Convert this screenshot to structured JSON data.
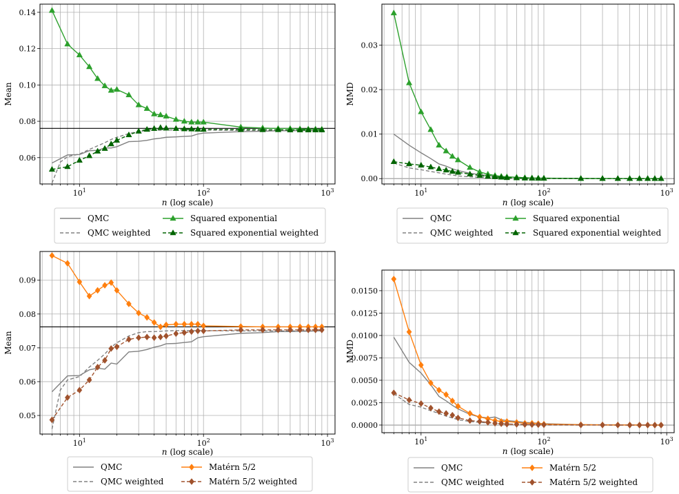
{
  "chart_data": [
    {
      "type": "line",
      "ylabel": "Mean",
      "xlabel": "n (log scale)",
      "xscale": "log",
      "xlim": [
        4.8,
        1150
      ],
      "ylim": [
        0.0455,
        0.1445
      ],
      "yticks": [
        0.06,
        0.08,
        0.1,
        0.12,
        0.14
      ],
      "ytick_labels": [
        "0.06",
        "0.08",
        "0.10",
        "0.12",
        "0.14"
      ],
      "hline": 0.0761,
      "grid": true,
      "legend_placement": "below",
      "series": [
        {
          "name": "QMC",
          "color": "#808080",
          "dash": "solid",
          "marker": "none",
          "x": [
            6,
            8,
            10,
            12,
            14,
            16,
            18,
            20,
            25,
            30,
            35,
            40,
            45,
            50,
            60,
            70,
            80,
            90,
            100,
            200,
            300,
            400,
            500,
            600,
            700,
            800,
            900
          ],
          "y": [
            0.057,
            0.0615,
            0.0617,
            0.0638,
            0.064,
            0.0654,
            0.0653,
            0.066,
            0.0688,
            0.069,
            0.0695,
            0.0703,
            0.0707,
            0.0712,
            0.0714,
            0.0717,
            0.0719,
            0.073,
            0.0735,
            0.0743,
            0.0745,
            0.0748,
            0.0748,
            0.0749,
            0.0749,
            0.075,
            0.075
          ]
        },
        {
          "name": "QMC weighted",
          "color": "#808080",
          "dash": "dashed",
          "marker": "none",
          "x": [
            6,
            7,
            8,
            10,
            12,
            14,
            16,
            18,
            20,
            25,
            30,
            35,
            40,
            50,
            60,
            70,
            80,
            100,
            200,
            300,
            400,
            500,
            600,
            700,
            800,
            900
          ],
          "y": [
            0.046,
            0.0575,
            0.0605,
            0.062,
            0.0645,
            0.0665,
            0.0682,
            0.07,
            0.0712,
            0.0732,
            0.0745,
            0.0748,
            0.075,
            0.0752,
            0.0753,
            0.0753,
            0.0753,
            0.0752,
            0.075,
            0.075,
            0.075,
            0.075,
            0.075,
            0.075,
            0.075,
            0.075
          ]
        },
        {
          "name": "Squared exponential",
          "color": "#2ca02c",
          "dash": "solid",
          "marker": "triangle",
          "x": [
            6,
            8,
            10,
            12,
            14,
            16,
            18,
            20,
            25,
            30,
            35,
            40,
            45,
            50,
            60,
            70,
            80,
            90,
            100,
            200,
            300,
            400,
            500,
            600,
            700,
            800,
            900
          ],
          "y": [
            0.141,
            0.1225,
            0.1165,
            0.11,
            0.1035,
            0.0995,
            0.097,
            0.0975,
            0.0945,
            0.089,
            0.087,
            0.084,
            0.0835,
            0.0828,
            0.081,
            0.08,
            0.0795,
            0.0795,
            0.0795,
            0.0768,
            0.0763,
            0.076,
            0.076,
            0.0758,
            0.0757,
            0.0757,
            0.0756
          ]
        },
        {
          "name": "Squared exponential weighted",
          "color": "#006400",
          "dash": "dashed",
          "marker": "triangle",
          "x": [
            6,
            8,
            10,
            12,
            14,
            16,
            18,
            20,
            25,
            30,
            35,
            40,
            45,
            50,
            60,
            70,
            80,
            90,
            100,
            200,
            300,
            400,
            500,
            600,
            700,
            800,
            900
          ],
          "y": [
            0.0535,
            0.055,
            0.0585,
            0.061,
            0.0635,
            0.065,
            0.0675,
            0.0695,
            0.0725,
            0.0745,
            0.0755,
            0.076,
            0.0765,
            0.0762,
            0.076,
            0.0758,
            0.0757,
            0.0756,
            0.0755,
            0.0754,
            0.0753,
            0.0753,
            0.0752,
            0.0752,
            0.0752,
            0.0752,
            0.0752
          ]
        }
      ]
    },
    {
      "type": "line",
      "ylabel": "MMD",
      "xlabel": "n (log scale)",
      "xscale": "log",
      "xlim": [
        4.8,
        1150
      ],
      "ylim": [
        -0.0012,
        0.0392
      ],
      "yticks": [
        0.0,
        0.01,
        0.02,
        0.03
      ],
      "ytick_labels": [
        "0.00",
        "0.01",
        "0.02",
        "0.03"
      ],
      "hline": 0.0,
      "grid": true,
      "legend_placement": "below",
      "series": [
        {
          "name": "QMC",
          "color": "#808080",
          "dash": "solid",
          "marker": "none",
          "x": [
            6,
            8,
            10,
            12,
            14,
            16,
            18,
            20,
            25,
            30,
            35,
            40,
            50,
            60,
            70,
            80,
            100,
            200,
            300,
            500,
            900
          ],
          "y": [
            0.01,
            0.0075,
            0.0058,
            0.0045,
            0.0033,
            0.0028,
            0.0022,
            0.0018,
            0.0012,
            0.0009,
            0.0007,
            0.0006,
            0.0004,
            0.0003,
            0.0002,
            0.00015,
            0.0001,
            5e-05,
            3e-05,
            2e-05,
            1e-05
          ]
        },
        {
          "name": "QMC weighted",
          "color": "#808080",
          "dash": "dashed",
          "marker": "none",
          "x": [
            6,
            8,
            10,
            12,
            14,
            16,
            18,
            20,
            25,
            30,
            40,
            50,
            70,
            100,
            200,
            300,
            500,
            900
          ],
          "y": [
            0.0035,
            0.0024,
            0.002,
            0.0016,
            0.0013,
            0.001,
            0.0008,
            0.0006,
            0.0004,
            0.0003,
            0.0002,
            0.00012,
            6e-05,
            3e-05,
            1e-05,
            1e-05,
            0.0,
            0.0
          ]
        },
        {
          "name": "Squared exponential",
          "color": "#2ca02c",
          "dash": "solid",
          "marker": "triangle",
          "x": [
            6,
            8,
            10,
            12,
            14,
            16,
            18,
            20,
            25,
            30,
            35,
            40,
            45,
            50,
            60,
            70,
            80,
            90,
            100,
            200,
            300,
            400,
            500,
            600,
            700,
            800,
            900
          ],
          "y": [
            0.0372,
            0.0215,
            0.015,
            0.011,
            0.0075,
            0.0062,
            0.005,
            0.0042,
            0.0025,
            0.0015,
            0.001,
            0.0007,
            0.0005,
            0.0004,
            0.0003,
            0.0002,
            0.00015,
            0.0001,
            0.0001,
            3e-05,
            2e-05,
            1e-05,
            1e-05,
            0.0,
            0.0,
            0.0,
            0.0
          ]
        },
        {
          "name": "Squared exponential weighted",
          "color": "#006400",
          "dash": "dashed",
          "marker": "triangle",
          "x": [
            6,
            8,
            10,
            12,
            14,
            16,
            18,
            20,
            25,
            30,
            35,
            40,
            45,
            50,
            60,
            70,
            80,
            90,
            100,
            200,
            300,
            400,
            500,
            600,
            700,
            800,
            900
          ],
          "y": [
            0.0038,
            0.0033,
            0.003,
            0.0026,
            0.0022,
            0.0019,
            0.0016,
            0.0014,
            0.001,
            0.0007,
            0.0005,
            0.0004,
            0.0003,
            0.0002,
            0.00015,
            0.0001,
            8e-05,
            6e-05,
            5e-05,
            2e-05,
            1e-05,
            1e-05,
            0.0,
            0.0,
            0.0,
            0.0,
            0.0
          ]
        }
      ]
    },
    {
      "type": "line",
      "ylabel": "Mean",
      "xlabel": "n (log scale)",
      "xscale": "log",
      "xlim": [
        4.8,
        1150
      ],
      "ylim": [
        0.0445,
        0.0985
      ],
      "yticks": [
        0.05,
        0.06,
        0.07,
        0.08,
        0.09
      ],
      "ytick_labels": [
        "0.05",
        "0.06",
        "0.07",
        "0.08",
        "0.09"
      ],
      "hline": 0.0762,
      "grid": true,
      "legend_placement": "below",
      "series": [
        {
          "name": "QMC",
          "color": "#808080",
          "dash": "solid",
          "marker": "none",
          "x": [
            6,
            8,
            10,
            12,
            14,
            16,
            18,
            20,
            25,
            30,
            35,
            40,
            45,
            50,
            60,
            70,
            80,
            90,
            100,
            200,
            300,
            400,
            500,
            600,
            700,
            800,
            900
          ],
          "y": [
            0.057,
            0.0617,
            0.0618,
            0.0635,
            0.064,
            0.0637,
            0.0655,
            0.0652,
            0.0688,
            0.069,
            0.0695,
            0.0702,
            0.0706,
            0.0712,
            0.0713,
            0.0716,
            0.0718,
            0.073,
            0.0733,
            0.0743,
            0.0745,
            0.0748,
            0.0748,
            0.0749,
            0.0749,
            0.075,
            0.075
          ]
        },
        {
          "name": "QMC weighted",
          "color": "#808080",
          "dash": "dashed",
          "marker": "none",
          "x": [
            6,
            7,
            8,
            10,
            12,
            14,
            16,
            18,
            20,
            25,
            30,
            35,
            40,
            50,
            60,
            70,
            80,
            100,
            200,
            300,
            400,
            500,
            600,
            700,
            800,
            900
          ],
          "y": [
            0.046,
            0.0575,
            0.0605,
            0.0615,
            0.0643,
            0.0663,
            0.0682,
            0.0702,
            0.0715,
            0.0735,
            0.0745,
            0.0748,
            0.0748,
            0.075,
            0.0751,
            0.0751,
            0.0751,
            0.0751,
            0.075,
            0.075,
            0.075,
            0.075,
            0.075,
            0.075,
            0.075,
            0.075
          ]
        },
        {
          "name": "Matérn 5/2",
          "color": "#ff7f0e",
          "dash": "solid",
          "marker": "diamond",
          "x": [
            6,
            8,
            10,
            12,
            14,
            16,
            18,
            20,
            25,
            30,
            35,
            40,
            45,
            50,
            60,
            70,
            80,
            90,
            100,
            200,
            300,
            400,
            500,
            600,
            700,
            800,
            900
          ],
          "y": [
            0.0973,
            0.095,
            0.0895,
            0.0853,
            0.087,
            0.0885,
            0.0893,
            0.087,
            0.083,
            0.0803,
            0.079,
            0.0775,
            0.0762,
            0.0768,
            0.077,
            0.077,
            0.077,
            0.077,
            0.0765,
            0.0763,
            0.0762,
            0.0762,
            0.0762,
            0.0762,
            0.0762,
            0.0762,
            0.0762
          ]
        },
        {
          "name": "Matérn 5/2 weighted",
          "color": "#a0522d",
          "dash": "dashed",
          "marker": "diamond",
          "x": [
            6,
            8,
            10,
            12,
            14,
            16,
            18,
            20,
            25,
            30,
            35,
            40,
            45,
            50,
            60,
            70,
            80,
            90,
            100,
            200,
            300,
            400,
            500,
            600,
            700,
            800,
            900
          ],
          "y": [
            0.0487,
            0.0553,
            0.0575,
            0.0605,
            0.0643,
            0.0663,
            0.0698,
            0.0703,
            0.0725,
            0.073,
            0.0732,
            0.073,
            0.0732,
            0.0735,
            0.0742,
            0.0745,
            0.0748,
            0.075,
            0.075,
            0.0753,
            0.0753,
            0.0753,
            0.0753,
            0.0753,
            0.0753,
            0.0753,
            0.0753
          ]
        }
      ]
    },
    {
      "type": "line",
      "ylabel": "MMD",
      "xlabel": "n (log scale)",
      "xscale": "log",
      "xlim": [
        4.8,
        1150
      ],
      "ylim": [
        -0.00085,
        0.0173
      ],
      "yticks": [
        0.0,
        0.0025,
        0.005,
        0.0075,
        0.01,
        0.0125,
        0.015
      ],
      "ytick_labels": [
        "0.0000",
        "0.0025",
        "0.0050",
        "0.0075",
        "0.0100",
        "0.0125",
        "0.0150"
      ],
      "hline": 0.0,
      "grid": true,
      "legend_placement": "below",
      "series": [
        {
          "name": "QMC",
          "color": "#808080",
          "dash": "solid",
          "marker": "none",
          "x": [
            6,
            8,
            10,
            12,
            14,
            16,
            18,
            20,
            25,
            30,
            35,
            40,
            45,
            50,
            60,
            70,
            80,
            100,
            200,
            300,
            500,
            900
          ],
          "y": [
            0.0098,
            0.007,
            0.0058,
            0.0045,
            0.0032,
            0.0027,
            0.0022,
            0.0018,
            0.0012,
            0.0009,
            0.0008,
            0.0009,
            0.0006,
            0.0005,
            0.0004,
            0.0003,
            0.00025,
            0.00015,
            5e-05,
            3e-05,
            2e-05,
            1e-05
          ]
        },
        {
          "name": "QMC weighted",
          "color": "#808080",
          "dash": "dashed",
          "marker": "none",
          "x": [
            6,
            8,
            10,
            12,
            14,
            16,
            18,
            20,
            25,
            30,
            40,
            50,
            70,
            100,
            200,
            300,
            500,
            900
          ],
          "y": [
            0.0035,
            0.0023,
            0.002,
            0.0016,
            0.0013,
            0.001,
            0.0008,
            0.0006,
            0.0004,
            0.0003,
            0.0002,
            0.00012,
            6e-05,
            3e-05,
            1e-05,
            1e-05,
            0.0,
            0.0
          ]
        },
        {
          "name": "Matérn 5/2",
          "color": "#ff7f0e",
          "dash": "solid",
          "marker": "diamond",
          "x": [
            6,
            8,
            10,
            12,
            14,
            16,
            18,
            20,
            25,
            30,
            35,
            40,
            45,
            50,
            60,
            70,
            80,
            90,
            100,
            200,
            300,
            400,
            500,
            600,
            700,
            800,
            900
          ],
          "y": [
            0.0163,
            0.0104,
            0.0067,
            0.0047,
            0.0039,
            0.0034,
            0.0027,
            0.0021,
            0.0013,
            0.0009,
            0.0007,
            0.0005,
            0.0004,
            0.0004,
            0.0003,
            0.0002,
            0.0002,
            0.00015,
            0.0001,
            4e-05,
            2e-05,
            1e-05,
            1e-05,
            0.0,
            0.0,
            0.0,
            0.0
          ]
        },
        {
          "name": "Matérn 5/2 weighted",
          "color": "#a0522d",
          "dash": "dashed",
          "marker": "diamond",
          "x": [
            6,
            8,
            10,
            12,
            14,
            16,
            18,
            20,
            25,
            30,
            35,
            40,
            45,
            50,
            60,
            70,
            80,
            90,
            100,
            200,
            300,
            400,
            500,
            600,
            700,
            800,
            900
          ],
          "y": [
            0.0036,
            0.0028,
            0.0024,
            0.0019,
            0.0015,
            0.0013,
            0.0011,
            0.0008,
            0.0005,
            0.0004,
            0.0003,
            0.0002,
            0.00015,
            0.0001,
            8e-05,
            6e-05,
            5e-05,
            4e-05,
            3e-05,
            1e-05,
            1e-05,
            0.0,
            0.0,
            0.0,
            0.0,
            0.0,
            0.0
          ]
        }
      ]
    }
  ]
}
